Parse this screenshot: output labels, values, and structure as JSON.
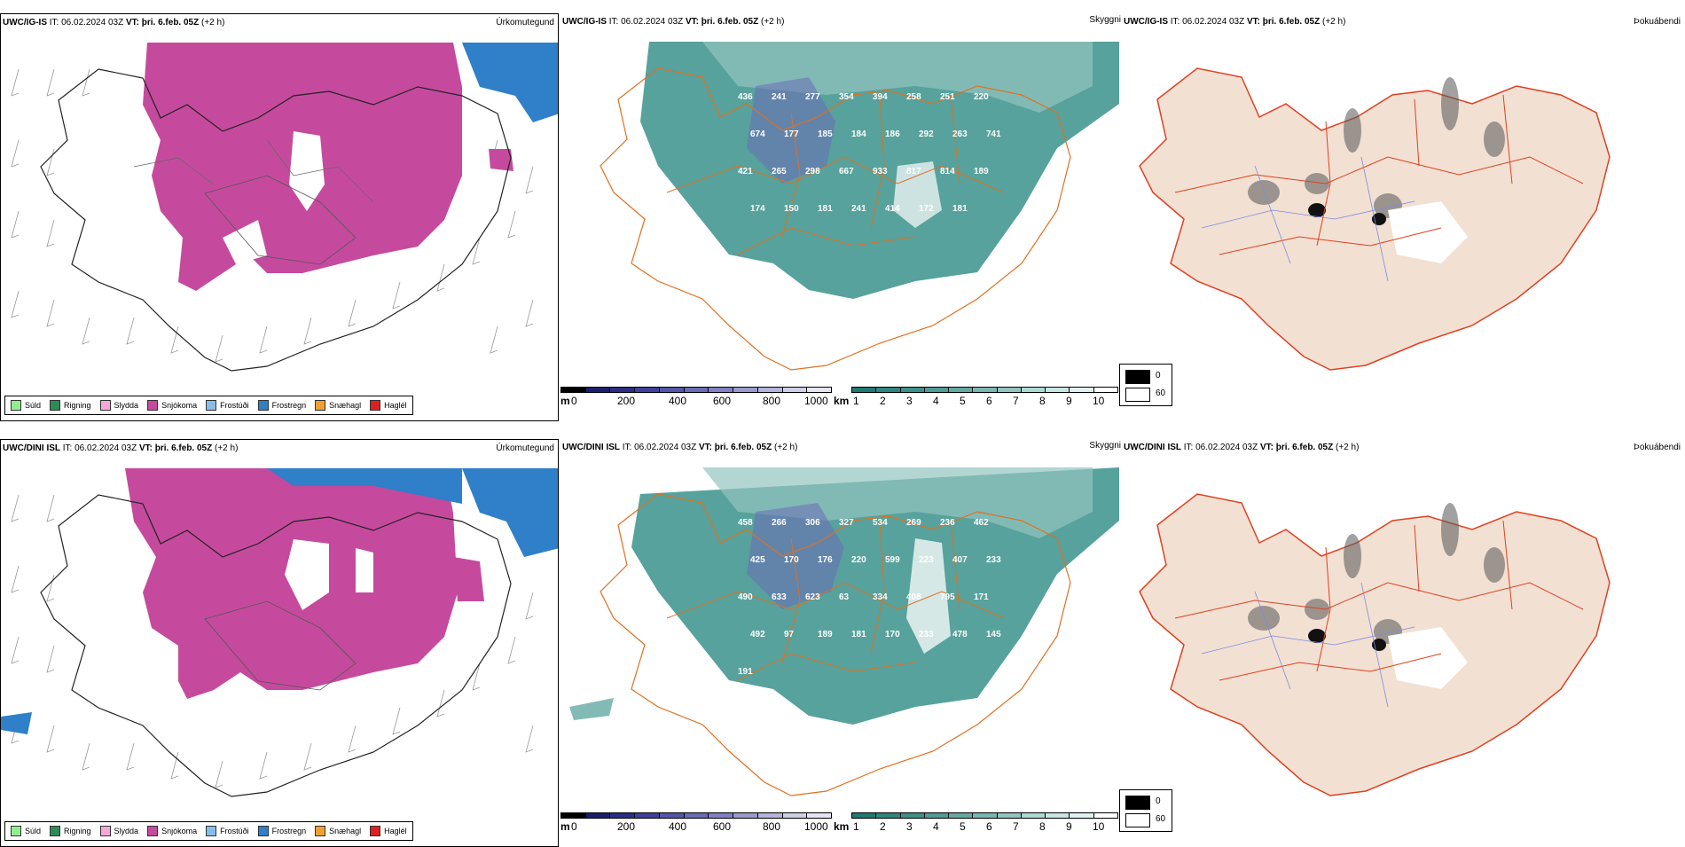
{
  "rows": [
    {
      "model": "UWC/IG-IS",
      "it_label": "IT:",
      "it_value": "06.02.2024 03Z",
      "vt_label": "VT:",
      "vt_value": "þri. 6.feb. 05Z",
      "lead": "(+2 h)"
    },
    {
      "model": "UWC/DINI ISL",
      "it_label": "IT:",
      "it_value": "06.02.2024 03Z",
      "vt_label": "VT:",
      "vt_value": "þri. 6.feb. 05Z",
      "lead": "(+2 h)"
    }
  ],
  "panel_types": {
    "precip": "Úrkomutegund",
    "visibility": "Skyggni",
    "fog": "Þokuábendi"
  },
  "precip_legend": [
    {
      "label": "Súld",
      "color": "#90ee90"
    },
    {
      "label": "Rigning",
      "color": "#2e8b57"
    },
    {
      "label": "Slydda",
      "color": "#f4a8d8"
    },
    {
      "label": "Snjókoma",
      "color": "#c54a9e"
    },
    {
      "label": "Frostúði",
      "color": "#87bde8"
    },
    {
      "label": "Frostregn",
      "color": "#2f7fc9"
    },
    {
      "label": "Snæhagl",
      "color": "#f0a030"
    },
    {
      "label": "Haglél",
      "color": "#e02020"
    }
  ],
  "cloud_base_bar": {
    "unit": "m",
    "ticks": [
      "0",
      "200",
      "400",
      "600",
      "800",
      "1000"
    ],
    "colors": [
      "#000000",
      "#1d1d6e",
      "#2c2c8a",
      "#3f3f9e",
      "#5555ad",
      "#6b6bb8",
      "#8181c4",
      "#9a9ad0",
      "#b4b4dc",
      "#cfcfe8",
      "#e5e5f3"
    ]
  },
  "visibility_bar": {
    "unit": "km",
    "ticks": [
      "1",
      "2",
      "3",
      "4",
      "5",
      "6",
      "7",
      "8",
      "9",
      "10"
    ],
    "colors": [
      "#1e7a74",
      "#2b8780",
      "#3a928b",
      "#4d9e97",
      "#63aaa4",
      "#7ab7b1",
      "#93c5c0",
      "#addad5",
      "#c8e6e3",
      "#e2f2f0",
      "#ffffff"
    ]
  },
  "fog_legend": [
    {
      "label": "0",
      "color": "#000000"
    },
    {
      "label": "60",
      "color": "#ffffff"
    }
  ],
  "cloud_labels_top": [
    "436",
    "241",
    "277",
    "354",
    "394",
    "258",
    "251",
    "220",
    "674",
    "177",
    "185",
    "184",
    "186",
    "292",
    "263",
    "741",
    "421",
    "265",
    "298",
    "667",
    "933",
    "817",
    "814",
    "189",
    "174",
    "150",
    "181",
    "241",
    "414",
    "172",
    "181"
  ],
  "cloud_labels_bottom": [
    "458",
    "266",
    "306",
    "327",
    "534",
    "269",
    "236",
    "462",
    "425",
    "170",
    "176",
    "220",
    "599",
    "223",
    "407",
    "233",
    "490",
    "633",
    "623",
    "63",
    "334",
    "408",
    "795",
    "171",
    "492",
    "97",
    "189",
    "181",
    "170",
    "233",
    "478",
    "145",
    "191"
  ]
}
